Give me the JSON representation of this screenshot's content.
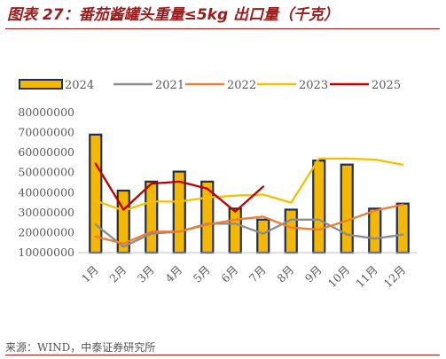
{
  "header": {
    "title": "图表 27：番茄酱罐头重量≤5kg 出口量（千克）"
  },
  "footer": {
    "source": "来源：WIND，中泰证券研究所"
  },
  "colors": {
    "title": "#9b1b1b",
    "bar_fill": "#f5b800",
    "bar_border": "#1f2d4f",
    "series_2021": "#8c8c8c",
    "series_2022": "#ed7d31",
    "series_2023": "#f5c000",
    "series_2025": "#c00000"
  },
  "chart_data": {
    "type": "bar",
    "categories": [
      "1月",
      "2月",
      "3月",
      "4月",
      "5月",
      "6月",
      "7月",
      "8月",
      "9月",
      "10月",
      "11月",
      "12月"
    ],
    "y_tick_labels": [
      "10000000",
      "20000000",
      "30000000",
      "40000000",
      "50000000",
      "60000000",
      "70000000",
      "80000000"
    ],
    "ylim": [
      10000000,
      80000000
    ],
    "grid": false,
    "legend_position": "top",
    "legend": [
      "2024",
      "2021",
      "2022",
      "2023",
      "2025"
    ],
    "bar_series": {
      "name": "2024",
      "values": [
        69000000,
        41000000,
        45500000,
        50500000,
        45500000,
        32000000,
        26500000,
        31500000,
        56000000,
        54000000,
        32000000,
        34500000
      ]
    },
    "line_series": [
      {
        "name": "2021",
        "values": [
          24000000,
          13000000,
          19500000,
          20500000,
          24500000,
          24500000,
          19500000,
          26500000,
          26500000,
          19000000,
          17000000,
          19000000
        ]
      },
      {
        "name": "2022",
        "values": [
          18000000,
          14500000,
          20500000,
          20500000,
          24000000,
          26500000,
          28000000,
          22500000,
          21500000,
          26000000,
          31000000,
          34000000
        ]
      },
      {
        "name": "2023",
        "values": [
          36000000,
          31000000,
          35500000,
          35500000,
          37500000,
          38500000,
          39000000,
          35000000,
          57000000,
          57000000,
          56500000,
          54000000
        ]
      },
      {
        "name": "2025",
        "values": [
          54500000,
          31500000,
          44500000,
          45500000,
          42000000,
          30500000,
          43000000,
          null,
          null,
          null,
          null,
          null
        ]
      }
    ]
  }
}
